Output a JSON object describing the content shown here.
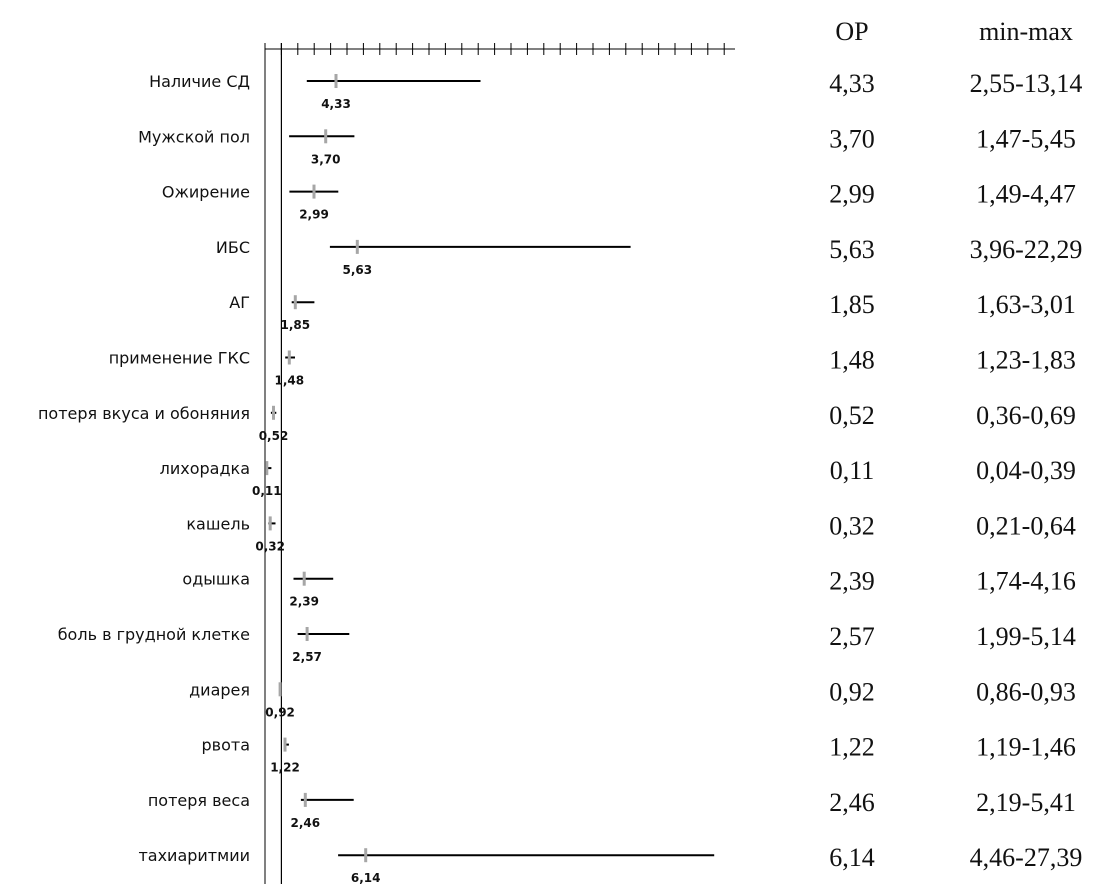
{
  "chart_data": {
    "type": "forest",
    "reference_line": 1,
    "columns": {
      "or_header": "OP",
      "range_header": "min-max"
    },
    "colors": {
      "ci_line": "#000000",
      "point_marker": "#a6a6a6",
      "axis": "#000000"
    },
    "rows": [
      {
        "label": "Наличие СД",
        "or": 4.33,
        "lo": 2.55,
        "hi": 13.14,
        "or_text": "4,33",
        "range_text": "2,55-13,14",
        "marker_label": "4,33"
      },
      {
        "label": "Мужской пол",
        "or": 3.7,
        "lo": 1.47,
        "hi": 5.45,
        "or_text": "3,70",
        "range_text": "1,47-5,45",
        "marker_label": "3,70"
      },
      {
        "label": "Ожирение",
        "or": 2.99,
        "lo": 1.49,
        "hi": 4.47,
        "or_text": "2,99",
        "range_text": "1,49-4,47",
        "marker_label": "2,99"
      },
      {
        "label": "ИБС",
        "or": 5.63,
        "lo": 3.96,
        "hi": 22.29,
        "or_text": "5,63",
        "range_text": "3,96-22,29",
        "marker_label": "5,63"
      },
      {
        "label": "АГ",
        "or": 1.85,
        "lo": 1.63,
        "hi": 3.01,
        "or_text": "1,85",
        "range_text": "1,63-3,01",
        "marker_label": "1,85"
      },
      {
        "label": "применение ГКС",
        "or": 1.48,
        "lo": 1.23,
        "hi": 1.83,
        "or_text": "1,48",
        "range_text": "1,23-1,83",
        "marker_label": "1,48"
      },
      {
        "label": "потеря вкуса и обоняния",
        "or": 0.52,
        "lo": 0.36,
        "hi": 0.69,
        "or_text": "0,52",
        "range_text": "0,36-0,69",
        "marker_label": "0,52"
      },
      {
        "label": "лихорадка",
        "or": 0.11,
        "lo": 0.04,
        "hi": 0.39,
        "or_text": "0,11",
        "range_text": "0,04-0,39",
        "marker_label": "0,11"
      },
      {
        "label": "кашель",
        "or": 0.32,
        "lo": 0.21,
        "hi": 0.64,
        "or_text": "0,32",
        "range_text": "0,21-0,64",
        "marker_label": "0,32"
      },
      {
        "label": "одышка",
        "or": 2.39,
        "lo": 1.74,
        "hi": 4.16,
        "or_text": "2,39",
        "range_text": "1,74-4,16",
        "marker_label": "2,39"
      },
      {
        "label": "боль в грудной клетке",
        "or": 2.57,
        "lo": 1.99,
        "hi": 5.14,
        "or_text": "2,57",
        "range_text": "1,99-5,14",
        "marker_label": "2,57"
      },
      {
        "label": "диарея",
        "or": 0.92,
        "lo": 0.86,
        "hi": 0.93,
        "or_text": "0,92",
        "range_text": "0,86-0,93",
        "marker_label": "0,92"
      },
      {
        "label": "рвота",
        "or": 1.22,
        "lo": 1.19,
        "hi": 1.46,
        "or_text": "1,22",
        "range_text": "1,19-1,46",
        "marker_label": "1,22"
      },
      {
        "label": "потеря веса",
        "or": 2.46,
        "lo": 2.19,
        "hi": 5.41,
        "or_text": "2,46",
        "range_text": "2,19-5,41",
        "marker_label": "2,46"
      },
      {
        "label": "тахиаритмии",
        "or": 6.14,
        "lo": 4.46,
        "hi": 27.39,
        "or_text": "6,14",
        "range_text": "4,46-27,39",
        "marker_label": "6,14"
      }
    ]
  }
}
